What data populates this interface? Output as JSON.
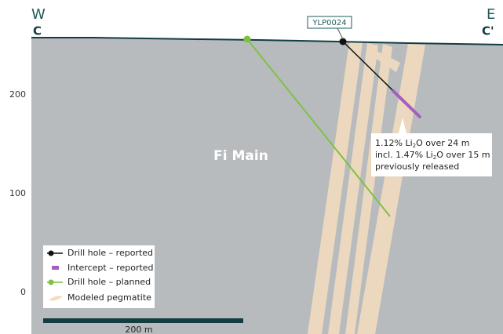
{
  "section": {
    "west": "W",
    "east": "E",
    "west_mark": "C",
    "east_mark": "C'"
  },
  "elevation_labels": [
    "200",
    "100",
    "0"
  ],
  "drill_hole_label": "YLP0024",
  "zone_label": "Fi Main",
  "annotation": {
    "lines": [
      [
        "1.12% Li",
        "2",
        "O over 24 m"
      ],
      [
        "incl. 1.47% Li",
        "2",
        "O over 15 m"
      ],
      [
        "previously released"
      ]
    ]
  },
  "legend": [
    "Drill hole – reported",
    "Intercept – reported",
    "Drill hole – planned",
    "Modeled pegmatite"
  ],
  "scale_bar": "200 m"
}
